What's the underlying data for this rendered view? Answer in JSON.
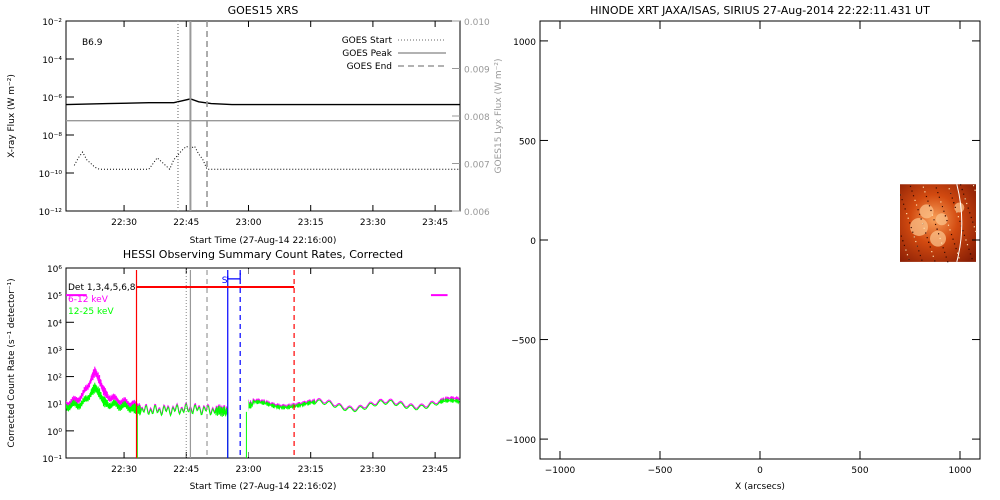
{
  "chart_data": [
    {
      "type": "line",
      "title": "GOES15 XRS",
      "xlabel": "Start Time (27-Aug-14 22:16:00)",
      "ylabel": "X-ray Flux (W m⁻²)",
      "y2label": "GOES15 Lyx Flux (W m⁻²)",
      "x_ticks": [
        "22:30",
        "22:45",
        "23:00",
        "23:15",
        "23:30",
        "23:45"
      ],
      "x_tick_minutes": [
        14,
        29,
        44,
        59,
        74,
        89
      ],
      "xlim_minutes": [
        0,
        95
      ],
      "y_ticks": [
        "10⁻²",
        "10⁻⁴",
        "10⁻⁶",
        "10⁻⁸",
        "10⁻¹⁰",
        "10⁻¹²"
      ],
      "ylim_log10": [
        -12,
        -2
      ],
      "y2_ticks": [
        "0.010",
        "0.009",
        "0.008",
        "0.007",
        "0.006"
      ],
      "y2lim": [
        0.006,
        0.01
      ],
      "y_scale": "log",
      "class_label": "B6.9",
      "legend": [
        {
          "label": "GOES Start",
          "style": "dotted"
        },
        {
          "label": "GOES Peak",
          "style": "solid"
        },
        {
          "label": "GOES End",
          "style": "dashed"
        }
      ],
      "legend_position": "top-right",
      "event_lines_minutes": {
        "start": 27,
        "peak": 30,
        "end": 34
      },
      "series": [
        {
          "color": "#000000",
          "axis": "left",
          "x": [
            0,
            10,
            20,
            26,
            28,
            30,
            32,
            35,
            40,
            50,
            60,
            70,
            80,
            90,
            95
          ],
          "log10_flux": [
            -6.4,
            -6.35,
            -6.3,
            -6.3,
            -6.2,
            -6.1,
            -6.25,
            -6.35,
            -6.4,
            -6.4,
            -6.4,
            -6.4,
            -6.4,
            -6.4,
            -6.4
          ]
        },
        {
          "color": "#999999",
          "axis": "right",
          "x": [
            0,
            10,
            20,
            30,
            40,
            50,
            60,
            70,
            80,
            90,
            95
          ],
          "lyx_flux": [
            0.0079,
            0.0079,
            0.0079,
            0.0079,
            0.0079,
            0.0079,
            0.0079,
            0.0079,
            0.0079,
            0.0079,
            0.0079
          ]
        },
        {
          "color": "#000000",
          "axis": "left",
          "dotted": true,
          "x": [
            2,
            3,
            4,
            5,
            7,
            8,
            20,
            21,
            22,
            24,
            25,
            26,
            28,
            29,
            30,
            31,
            32,
            33,
            34,
            35,
            95
          ],
          "log10_flux": [
            -9.6,
            -9.2,
            -8.9,
            -9.3,
            -9.7,
            -9.8,
            -9.8,
            -9.5,
            -9.2,
            -9.6,
            -9.8,
            -9.3,
            -8.8,
            -8.6,
            -8.7,
            -8.6,
            -9.0,
            -9.3,
            -9.8,
            -9.8,
            -9.8
          ]
        }
      ]
    },
    {
      "type": "line",
      "title": "HESSI Observing Summary Count Rates, Corrected",
      "xlabel": "Start Time (27-Aug-14 22:16:02)",
      "ylabel": "Corrected Count Rate (s⁻¹ detector⁻¹)",
      "x_ticks": [
        "22:30",
        "22:45",
        "23:00",
        "23:15",
        "23:30",
        "23:45"
      ],
      "x_tick_minutes": [
        14,
        29,
        44,
        59,
        74,
        89
      ],
      "xlim_minutes": [
        0,
        95
      ],
      "y_ticks": [
        "10⁶",
        "10⁵",
        "10⁴",
        "10³",
        "10²",
        "10¹",
        "10⁰",
        "10⁻¹"
      ],
      "ylim_log10": [
        -1,
        6
      ],
      "y_scale": "log",
      "legend": [
        {
          "label": "Det 1,3,4,5,6,8",
          "color": "#000000"
        },
        {
          "label": "6-12 keV",
          "color": "#ff00ff"
        },
        {
          "label": "12-25 keV",
          "color": "#00ff00"
        }
      ],
      "legend_position": "top-left",
      "s_label": "S",
      "saa_bar": {
        "x": [
          17,
          55
        ],
        "log10_value": 5.3
      },
      "magenta_top_ticks": [
        {
          "x": [
            0,
            5
          ],
          "log10": 5.0
        },
        {
          "x": [
            88,
            92
          ],
          "log10": 5.0
        }
      ],
      "vlines": [
        {
          "x": 17,
          "color": "#ff0000",
          "style": "solid"
        },
        {
          "x": 29,
          "color": "#999999",
          "style": "dotted"
        },
        {
          "x": 30,
          "color": "#999999",
          "style": "solid"
        },
        {
          "x": 34,
          "color": "#999999",
          "style": "dashed"
        },
        {
          "x": 39,
          "color": "#0000ff",
          "style": "solid"
        },
        {
          "x": 42,
          "color": "#0000ff",
          "style": "dashed"
        },
        {
          "x": 55,
          "color": "#ff0000",
          "style": "dashed"
        }
      ],
      "series": [
        {
          "name": "6-12 keV",
          "color": "#ff00ff",
          "x": [
            0,
            2,
            4,
            6,
            7,
            8,
            9,
            10,
            12,
            14,
            16,
            17,
            18,
            24,
            30,
            36,
            38.5,
            42,
            45,
            50,
            55,
            60,
            70,
            80,
            90,
            95
          ],
          "log10": [
            1.0,
            1.1,
            1.3,
            1.9,
            2.2,
            1.9,
            1.5,
            1.3,
            1.15,
            1.05,
            1.0,
            0.9,
            0.8,
            0.8,
            0.85,
            0.8,
            0.75,
            0.95,
            1.0,
            1.0,
            1.05,
            1.0,
            0.95,
            1.0,
            1.05,
            1.1
          ]
        },
        {
          "name": "12-25 keV",
          "color": "#00ff00",
          "x": [
            0,
            2,
            4,
            6,
            7,
            8,
            9,
            10,
            12,
            14,
            16,
            17,
            18,
            24,
            30,
            36,
            38.5,
            42,
            45,
            50,
            55,
            60,
            70,
            80,
            90,
            95
          ],
          "log10": [
            0.9,
            0.95,
            1.0,
            1.4,
            1.6,
            1.4,
            1.1,
            1.0,
            0.95,
            0.9,
            0.85,
            0.8,
            0.75,
            0.75,
            0.8,
            0.75,
            0.7,
            0.9,
            0.95,
            0.95,
            1.0,
            0.95,
            0.9,
            0.95,
            1.0,
            1.0
          ]
        }
      ]
    },
    {
      "type": "heatmap",
      "title": "HINODE XRT JAXA/ISAS, SIRIUS 27-Aug-2014 22:22:11.431 UT",
      "xlabel": "X (arcsecs)",
      "ylabel": "",
      "x_ticks": [
        "−1000",
        "−500",
        "0",
        "500",
        "1000"
      ],
      "x_tick_values": [
        -1000,
        -500,
        0,
        500,
        1000
      ],
      "y_ticks": [
        "1000",
        "500",
        "0",
        "−500",
        "−1000"
      ],
      "y_tick_values": [
        1000,
        500,
        0,
        -500,
        -1000
      ],
      "xlim": [
        -1100,
        1100
      ],
      "ylim": [
        -1100,
        1100
      ],
      "image_patch": {
        "x": [
          700,
          1080
        ],
        "y": [
          -110,
          280
        ],
        "colormap": "orange"
      },
      "limb_arc_color": "#ffffff"
    }
  ]
}
